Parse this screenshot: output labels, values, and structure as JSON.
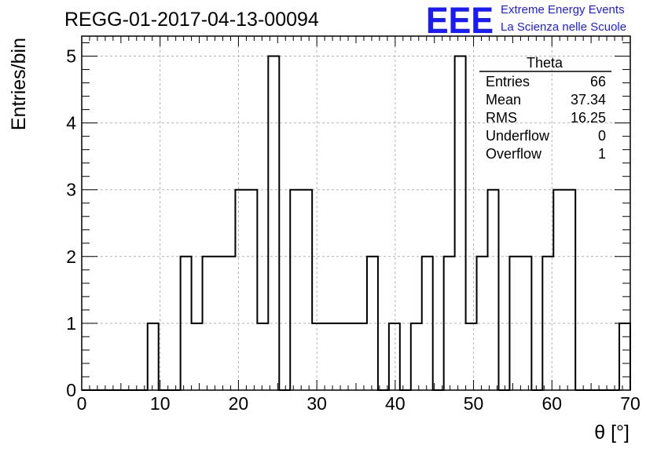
{
  "chart_data": {
    "type": "histogram",
    "title": "REGG-01-2017-04-13-00094",
    "xlabel": "θ [°]",
    "ylabel": "Entries/bin",
    "xlim": [
      0,
      70
    ],
    "ylim": [
      0,
      5.3
    ],
    "grid": true,
    "x_ticks": [
      0,
      10,
      20,
      30,
      40,
      50,
      60,
      70
    ],
    "y_ticks": [
      0,
      1,
      2,
      3,
      4,
      5
    ],
    "bin_edges": [
      0,
      1.4,
      2.8,
      4.2,
      5.6,
      7.0,
      8.4,
      9.8,
      11.2,
      12.6,
      14.0,
      15.4,
      16.8,
      18.2,
      19.6,
      21.0,
      22.4,
      23.8,
      25.2,
      26.6,
      28.0,
      29.4,
      30.8,
      32.2,
      33.6,
      35.0,
      36.4,
      37.8,
      39.2,
      40.6,
      42.0,
      43.4,
      44.8,
      46.2,
      47.6,
      49.0,
      50.4,
      51.8,
      53.2,
      54.6,
      56.0,
      57.4,
      58.8,
      60.2,
      61.6,
      63.0,
      64.4,
      65.8,
      67.2,
      68.6,
      70.0
    ],
    "counts": [
      0,
      0,
      0,
      0,
      0,
      0,
      1,
      0,
      0,
      2,
      1,
      2,
      2,
      2,
      3,
      3,
      1,
      5,
      0,
      3,
      3,
      1,
      1,
      1,
      1,
      1,
      2,
      0,
      1,
      0,
      1,
      2,
      0,
      2,
      5,
      1,
      2,
      3,
      0,
      2,
      2,
      0,
      2,
      3,
      3,
      0,
      0,
      0,
      0,
      1
    ],
    "stats_box": {
      "title": "Theta",
      "rows": [
        {
          "label": "Entries",
          "value": "66"
        },
        {
          "label": "Mean",
          "value": "37.34"
        },
        {
          "label": "RMS",
          "value": "16.25"
        },
        {
          "label": "Underflow",
          "value": "0"
        },
        {
          "label": "Overflow",
          "value": "1"
        }
      ]
    }
  },
  "logo": {
    "text": "EEE",
    "line1": "Extreme Energy Events",
    "line2": "La Scienza nelle Scuole",
    "color": "#1a1aff"
  },
  "colors": {
    "line": "#000000",
    "grid": "#b4b4b4",
    "background": "#ffffff"
  }
}
